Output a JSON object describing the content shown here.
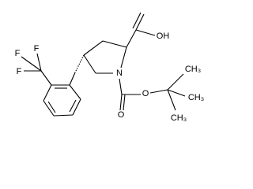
{
  "atoms": [
    {
      "label": "OH"
    },
    {
      "label": "N"
    },
    {
      "label": "O"
    },
    {
      "label": "O"
    },
    {
      "label": "F"
    },
    {
      "label": "F"
    },
    {
      "label": "F"
    },
    {
      "label": "CH₃"
    },
    {
      "label": "CH₃"
    },
    {
      "label": "CH₃"
    }
  ]
}
